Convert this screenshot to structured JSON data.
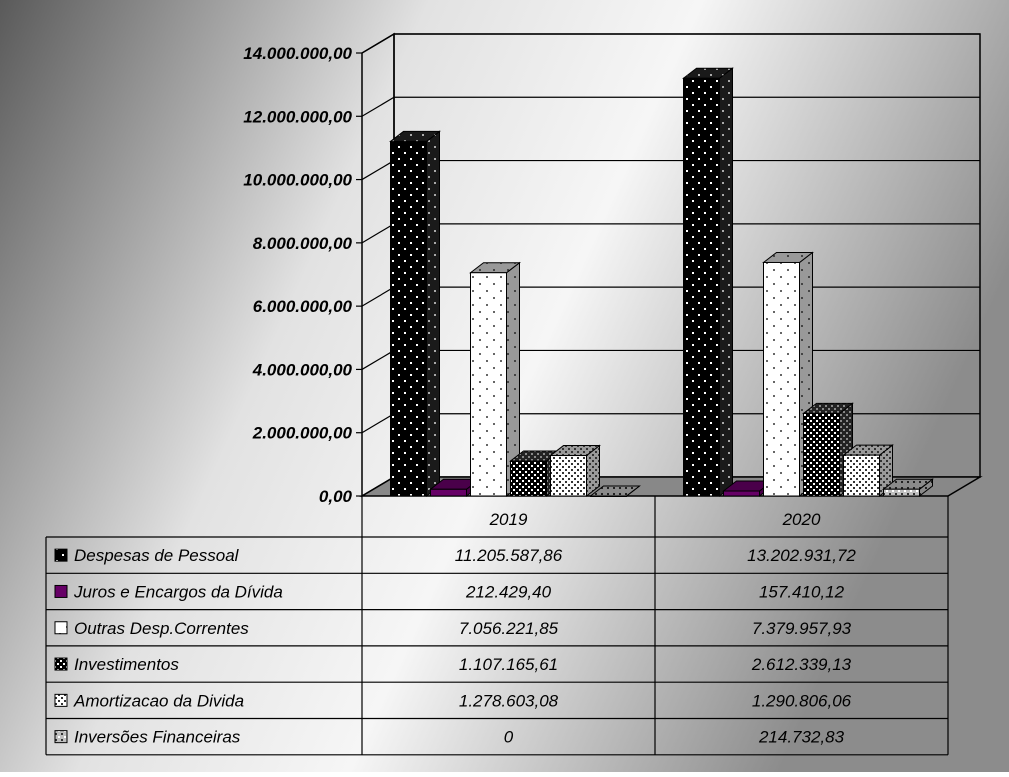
{
  "chart_data": {
    "type": "bar",
    "title": "",
    "xlabel": "",
    "ylabel": "",
    "categories": [
      "2019",
      "2020"
    ],
    "ylim": [
      0,
      14000000
    ],
    "y_ticks": [
      "0,00",
      "2.000.000,00",
      "4.000.000,00",
      "6.000.000,00",
      "8.000.000,00",
      "10.000.000,00",
      "12.000.000,00",
      "14.000.000,00"
    ],
    "legend_position": "data table below chart",
    "grid": true,
    "series": [
      {
        "name": "Despesas de Pessoal",
        "values": [
          11205587.86,
          13202931.72
        ],
        "labels": [
          "11.205.587,86",
          "13.202.931,72"
        ],
        "color": "#000000",
        "pattern": "dots-white-on-black"
      },
      {
        "name": "Juros e Encargos da Dívida",
        "values": [
          212429.4,
          157410.12
        ],
        "labels": [
          "212.429,40",
          "157.410,12"
        ],
        "color": "#660066",
        "pattern": "solid"
      },
      {
        "name": "Outras Desp.Correntes",
        "values": [
          7056221.85,
          7379957.93
        ],
        "labels": [
          "7.056.221,85",
          "7.379.957,93"
        ],
        "color": "#ffffff",
        "pattern": "dots-grey-on-white"
      },
      {
        "name": "Investimentos",
        "values": [
          1107165.61,
          2612339.13
        ],
        "labels": [
          "1.107.165,61",
          "2.612.339,13"
        ],
        "color": "#000000",
        "pattern": "checker"
      },
      {
        "name": "Amortizacao da Divida",
        "values": [
          1278603.08,
          1290806.06
        ],
        "labels": [
          "1.278.603,08",
          "1.290.806,06"
        ],
        "color": "#ffffff",
        "pattern": "dots-dark-on-white"
      },
      {
        "name": "Inversões Financeiras",
        "values": [
          0,
          214732.83
        ],
        "labels": [
          "0",
          "214.732,83"
        ],
        "color": "#c0c0c0",
        "pattern": "dots-on-grey"
      }
    ]
  }
}
